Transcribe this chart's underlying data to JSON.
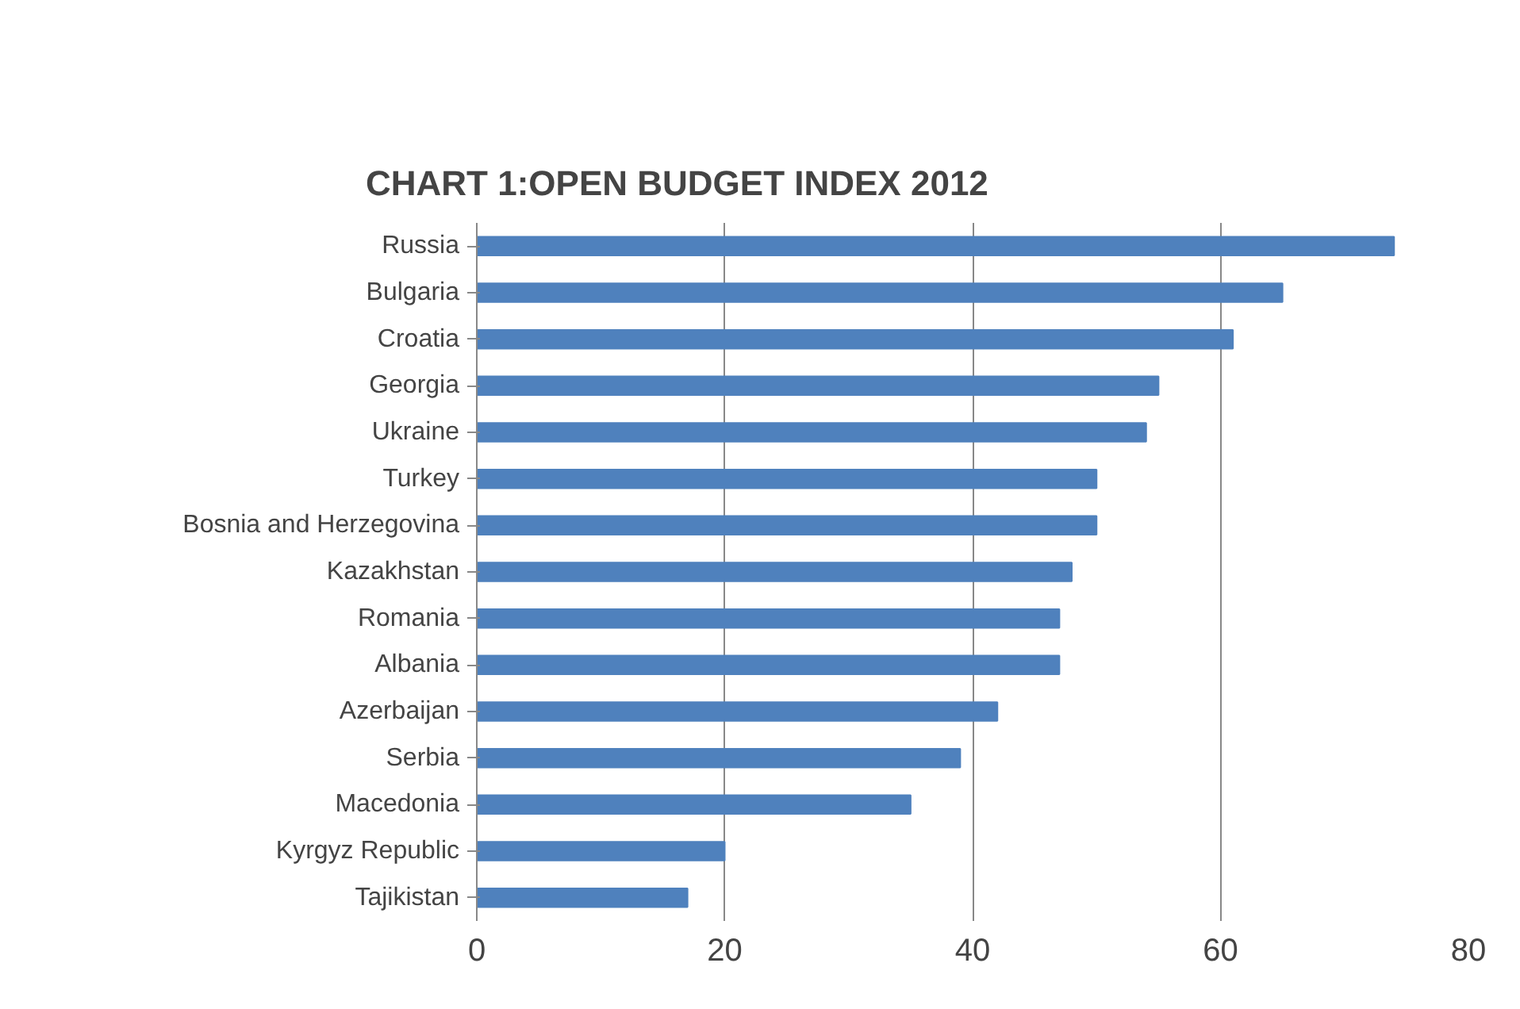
{
  "chart_data": {
    "type": "bar",
    "orientation": "horizontal",
    "title": "CHART 1:OPEN BUDGET INDEX 2012",
    "categories": [
      "Russia",
      "Bulgaria",
      "Croatia",
      "Georgia",
      "Ukraine",
      "Turkey",
      "Bosnia and Herzegovina",
      "Kazakhstan",
      "Romania",
      "Albania",
      "Azerbaijan",
      "Serbia",
      "Macedonia",
      "Kyrgyz Republic",
      "Tajikistan"
    ],
    "values": [
      74,
      65,
      61,
      55,
      54,
      50,
      50,
      48,
      47,
      47,
      42,
      39,
      35,
      20,
      17
    ],
    "color": "#4f81bd",
    "xlim": [
      0,
      80
    ],
    "xticks": [
      0,
      20,
      40,
      60,
      80
    ],
    "grid": "x"
  }
}
